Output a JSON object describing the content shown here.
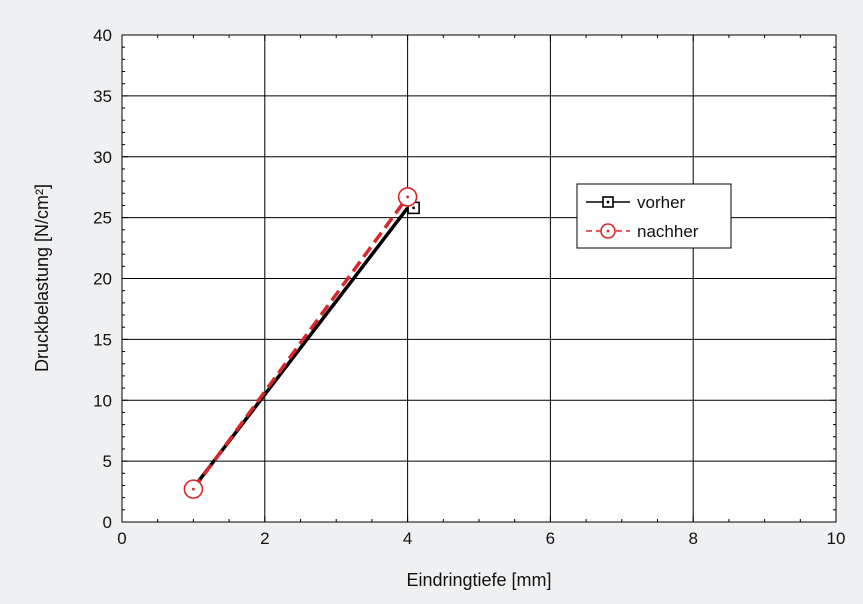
{
  "chart_data": {
    "type": "line",
    "title": "",
    "xlabel": "Eindringtiefe [mm]",
    "ylabel": "Druckbelastung [N/cm²]",
    "xlim": [
      0,
      10
    ],
    "ylim": [
      0,
      40
    ],
    "xticks": [
      0,
      2,
      4,
      6,
      8,
      10
    ],
    "yticks": [
      0,
      5,
      10,
      15,
      20,
      25,
      30,
      35,
      40
    ],
    "grid": true,
    "legend_position": "right",
    "series": [
      {
        "name": "vorher",
        "color": "#000000",
        "line_style": "solid",
        "marker": "square-dot",
        "points": [
          {
            "x": 1.0,
            "y": 2.8
          },
          {
            "x": 4.0,
            "y": 25.8
          }
        ]
      },
      {
        "name": "nachher",
        "color": "#d9262b",
        "line_style": "dashed",
        "marker": "circle-dot",
        "points": [
          {
            "x": 1.0,
            "y": 2.7
          },
          {
            "x": 4.0,
            "y": 26.7
          }
        ]
      }
    ]
  }
}
